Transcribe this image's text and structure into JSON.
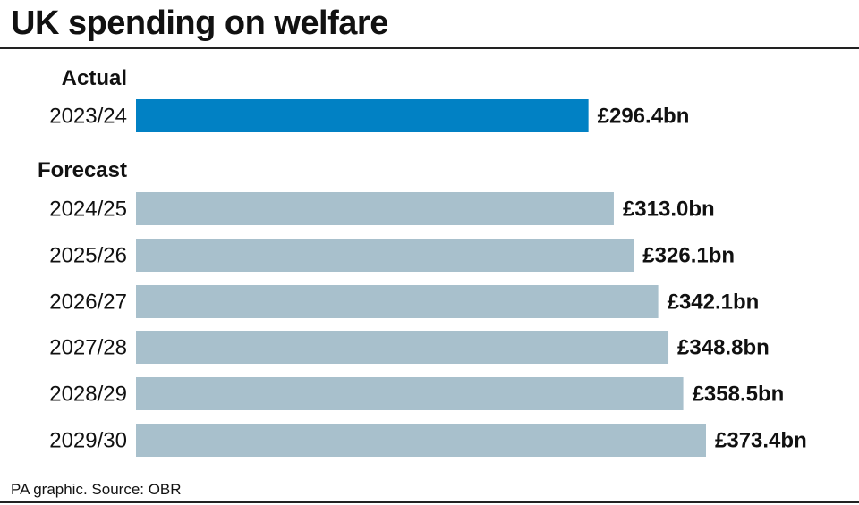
{
  "title": "UK spending on welfare",
  "source": "PA graphic. Source: OBR",
  "groups": {
    "actual": "Actual",
    "forecast": "Forecast"
  },
  "colors": {
    "actual": "#0181c4",
    "forecast": "#a8c0cc"
  },
  "chart_data": {
    "type": "bar",
    "orientation": "horizontal",
    "title": "UK spending on welfare",
    "categories": [
      "2023/24",
      "2024/25",
      "2025/26",
      "2026/27",
      "2027/28",
      "2028/29",
      "2029/30"
    ],
    "values": [
      296.4,
      313.0,
      326.1,
      342.1,
      348.8,
      358.5,
      373.4
    ],
    "labels": [
      "£296.4bn",
      "£313.0bn",
      "£326.1bn",
      "£342.1bn",
      "£348.8bn",
      "£358.5bn",
      "£373.4bn"
    ],
    "groups": [
      "actual",
      "forecast",
      "forecast",
      "forecast",
      "forecast",
      "forecast",
      "forecast"
    ],
    "xlim": [
      0,
      373.4
    ],
    "grid": false
  }
}
